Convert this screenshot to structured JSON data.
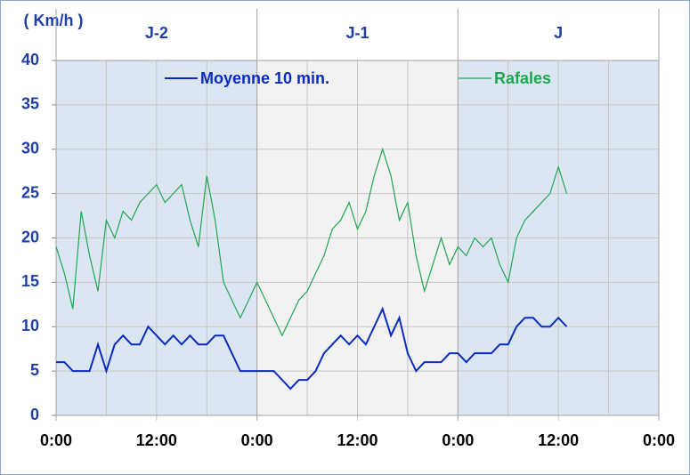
{
  "chart_data": {
    "type": "line",
    "y_unit_label": "( Km/h )",
    "days": [
      {
        "label": "J-2",
        "start": 0,
        "end": 24,
        "color": "#dce6f2"
      },
      {
        "label": "J-1",
        "start": 24,
        "end": 48,
        "color": "#f2f2f2"
      },
      {
        "label": "J",
        "start": 48,
        "end": 72,
        "color": "#dce6f2"
      }
    ],
    "x": [
      0,
      1,
      2,
      3,
      4,
      5,
      6,
      7,
      8,
      9,
      10,
      11,
      12,
      13,
      14,
      15,
      16,
      17,
      18,
      19,
      20,
      21,
      22,
      23,
      24,
      25,
      26,
      27,
      28,
      29,
      30,
      31,
      32,
      33,
      34,
      35,
      36,
      37,
      38,
      39,
      40,
      41,
      42,
      43,
      44,
      45,
      46,
      47,
      48,
      49,
      50,
      51,
      52,
      53,
      54,
      55,
      56,
      57,
      58,
      59,
      60,
      61
    ],
    "series": [
      {
        "name": "Moyenne 10 min.",
        "color": "#0a2bbf",
        "values": [
          6,
          6,
          5,
          5,
          5,
          8,
          5,
          8,
          9,
          8,
          8,
          10,
          9,
          8,
          9,
          8,
          9,
          8,
          8,
          9,
          9,
          7,
          5,
          5,
          5,
          5,
          5,
          4,
          3,
          4,
          4,
          5,
          7,
          8,
          9,
          8,
          9,
          8,
          10,
          12,
          9,
          11,
          7,
          5,
          6,
          6,
          6,
          7,
          7,
          6,
          7,
          7,
          7,
          8,
          8,
          10,
          11,
          11,
          10,
          10,
          11,
          10
        ]
      },
      {
        "name": "Rafales",
        "color": "#1fa650",
        "values": [
          19,
          16,
          12,
          23,
          18,
          14,
          22,
          20,
          23,
          22,
          24,
          25,
          26,
          24,
          25,
          26,
          22,
          19,
          27,
          22,
          15,
          13,
          11,
          13,
          15,
          13,
          11,
          9,
          11,
          13,
          14,
          16,
          18,
          21,
          22,
          24,
          21,
          23,
          27,
          30,
          27,
          22,
          24,
          18,
          14,
          17,
          20,
          17,
          19,
          18,
          20,
          19,
          20,
          17,
          15,
          20,
          22,
          23,
          24,
          25,
          28,
          25
        ]
      }
    ],
    "xlim": [
      0,
      72
    ],
    "xticks": [
      {
        "value": 0,
        "label": "0:00"
      },
      {
        "value": 12,
        "label": "12:00"
      },
      {
        "value": 24,
        "label": "0:00"
      },
      {
        "value": 36,
        "label": "12:00"
      },
      {
        "value": 48,
        "label": "0:00"
      },
      {
        "value": 60,
        "label": "12:00"
      },
      {
        "value": 72,
        "label": "0:00"
      }
    ],
    "x_minor_grid": [
      6,
      18,
      30,
      42,
      54,
      66
    ],
    "ylim": [
      0,
      40
    ],
    "yticks": [
      0,
      5,
      10,
      15,
      20,
      25,
      30,
      35,
      40
    ],
    "grid": true
  }
}
